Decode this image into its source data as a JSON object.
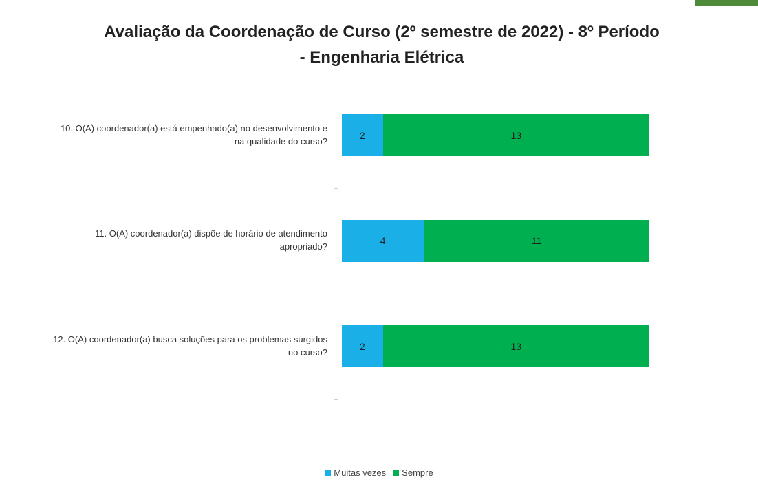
{
  "chart_data": {
    "type": "stacked_barh",
    "title": "Avaliação da Coordenação de Curso (2º semestre de 2022) - 8º Período - Engenharia Elétrica",
    "categories": [
      "10. O(A) coordenador(a) está empenhado(a) no desenvolvimento e na qualidade do curso?",
      "11. O(A) coordenador(a) dispõe de horário de atendimento apropriado?",
      "12. O(A) coordenador(a) busca soluções para os problemas surgidos no curso?"
    ],
    "series": [
      {
        "name": "Muitas vezes",
        "color": "#1aafe6",
        "values": [
          2,
          4,
          2
        ]
      },
      {
        "name": "Sempre",
        "color": "#00b050",
        "values": [
          13,
          11,
          13
        ]
      }
    ],
    "legend": "bottom"
  }
}
